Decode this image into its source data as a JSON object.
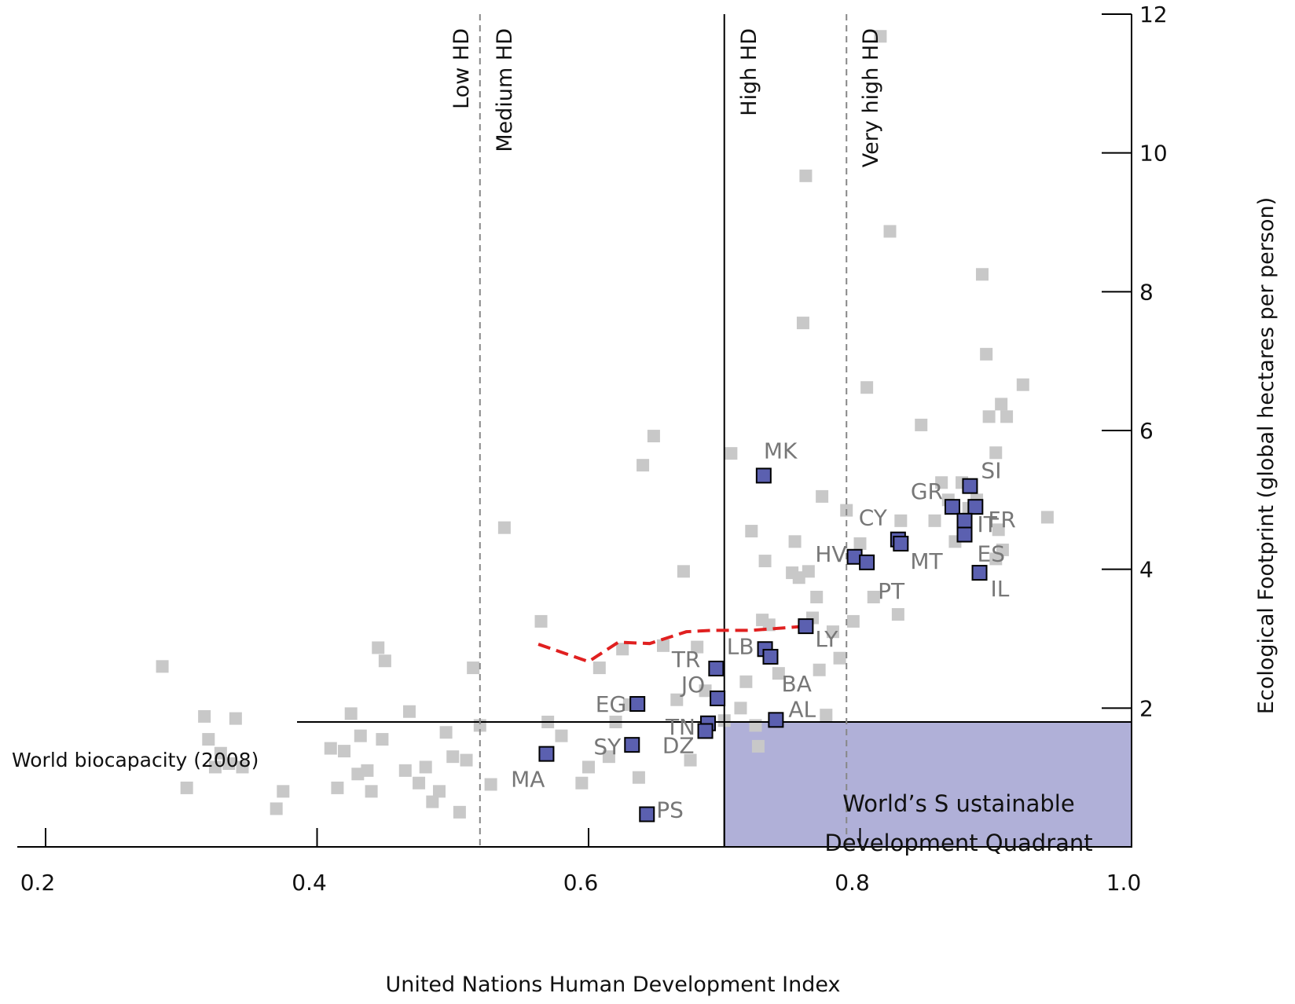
{
  "chart_data": {
    "type": "scatter",
    "title": "",
    "xlabel": "United Nations Human Development Index",
    "ylabel": "Ecological Footprint (global hectares per person)",
    "xlim": [
      0.2,
      1.0
    ],
    "ylim": [
      0,
      12
    ],
    "x_ticks": [
      "0.2",
      "0.4",
      "0.6",
      "0.8",
      "1.0"
    ],
    "y_ticks": [
      "2",
      "4",
      "6",
      "8",
      "10",
      "12"
    ],
    "x_tick_values": [
      0.2,
      0.4,
      0.6,
      0.8,
      1.0
    ],
    "y_tick_values": [
      2,
      4,
      6,
      8,
      10,
      12
    ],
    "grid": false,
    "hd_thresholds": [
      {
        "label": "Low HD",
        "x": 0.52,
        "style": "dashed"
      },
      {
        "label": "Medium HD",
        "x": 0.52,
        "style": "dashed"
      },
      {
        "label": "High HD",
        "x": 0.7,
        "style": "solid"
      },
      {
        "label": "Very high HD",
        "x": 0.79,
        "style": "dashed"
      }
    ],
    "biocapacity": {
      "label": "World biocapacity (2008)",
      "y": 1.8
    },
    "quadrant": {
      "label_line1": "World’s  S ustainable",
      "label_line2": "Development Quadrant",
      "x_range": [
        0.7,
        1.0
      ],
      "y_range": [
        0,
        1.8
      ],
      "color": "#b0b0d8"
    },
    "colors": {
      "highlight": "#5b60b0",
      "background_points": "#c8c8c8",
      "trend": "#e02020",
      "labels": "#777777"
    },
    "trend_line": {
      "x": [
        0.563,
        0.6,
        0.622,
        0.645,
        0.672,
        0.69,
        0.72,
        0.76
      ],
      "y": [
        2.92,
        2.67,
        2.95,
        2.93,
        3.1,
        3.12,
        3.12,
        3.18
      ]
    },
    "highlighted_series": [
      {
        "label": "MK",
        "x": 0.729,
        "y": 5.35
      },
      {
        "label": "SI",
        "x": 0.881,
        "y": 5.2
      },
      {
        "label": "GR",
        "x": 0.868,
        "y": 4.9
      },
      {
        "label": "FR",
        "x": 0.885,
        "y": 4.9
      },
      {
        "label": "IT",
        "x": 0.877,
        "y": 4.7
      },
      {
        "label": "CY",
        "x": 0.828,
        "y": 4.43
      },
      {
        "label": "MT",
        "x": 0.83,
        "y": 4.37
      },
      {
        "label": "ES",
        "x": 0.877,
        "y": 4.5
      },
      {
        "label": "HV",
        "x": 0.796,
        "y": 4.18
      },
      {
        "label": "PT",
        "x": 0.805,
        "y": 4.1
      },
      {
        "label": "IL",
        "x": 0.888,
        "y": 3.95
      },
      {
        "label": "LY",
        "x": 0.76,
        "y": 3.18
      },
      {
        "label": "LB",
        "x": 0.73,
        "y": 2.85
      },
      {
        "label": "BA",
        "x": 0.734,
        "y": 2.74
      },
      {
        "label": "TR",
        "x": 0.694,
        "y": 2.57
      },
      {
        "label": "JO",
        "x": 0.695,
        "y": 2.14
      },
      {
        "label": "EG",
        "x": 0.636,
        "y": 2.06
      },
      {
        "label": "TN",
        "x": 0.688,
        "y": 1.78
      },
      {
        "label": "AL",
        "x": 0.738,
        "y": 1.83
      },
      {
        "label": "DZ",
        "x": 0.686,
        "y": 1.67
      },
      {
        "label": "SY",
        "x": 0.632,
        "y": 1.47
      },
      {
        "label": "MA",
        "x": 0.569,
        "y": 1.34
      },
      {
        "label": "PS",
        "x": 0.643,
        "y": 0.47
      }
    ],
    "background_points": [
      {
        "x": 0.286,
        "y": 2.6
      },
      {
        "x": 0.304,
        "y": 0.85
      },
      {
        "x": 0.317,
        "y": 1.88
      },
      {
        "x": 0.32,
        "y": 1.55
      },
      {
        "x": 0.325,
        "y": 1.15
      },
      {
        "x": 0.329,
        "y": 1.35
      },
      {
        "x": 0.335,
        "y": 1.2
      },
      {
        "x": 0.34,
        "y": 1.85
      },
      {
        "x": 0.345,
        "y": 1.15
      },
      {
        "x": 0.37,
        "y": 0.55
      },
      {
        "x": 0.375,
        "y": 0.8
      },
      {
        "x": 0.41,
        "y": 1.42
      },
      {
        "x": 0.415,
        "y": 0.85
      },
      {
        "x": 0.42,
        "y": 1.38
      },
      {
        "x": 0.425,
        "y": 1.92
      },
      {
        "x": 0.43,
        "y": 1.05
      },
      {
        "x": 0.432,
        "y": 1.6
      },
      {
        "x": 0.437,
        "y": 1.1
      },
      {
        "x": 0.44,
        "y": 0.8
      },
      {
        "x": 0.445,
        "y": 2.87
      },
      {
        "x": 0.448,
        "y": 1.55
      },
      {
        "x": 0.45,
        "y": 2.68
      },
      {
        "x": 0.465,
        "y": 1.1
      },
      {
        "x": 0.468,
        "y": 1.95
      },
      {
        "x": 0.475,
        "y": 0.92
      },
      {
        "x": 0.48,
        "y": 1.15
      },
      {
        "x": 0.485,
        "y": 0.65
      },
      {
        "x": 0.49,
        "y": 0.8
      },
      {
        "x": 0.495,
        "y": 1.65
      },
      {
        "x": 0.5,
        "y": 1.3
      },
      {
        "x": 0.505,
        "y": 0.5
      },
      {
        "x": 0.51,
        "y": 1.25
      },
      {
        "x": 0.515,
        "y": 2.58
      },
      {
        "x": 0.52,
        "y": 1.75
      },
      {
        "x": 0.528,
        "y": 0.9
      },
      {
        "x": 0.538,
        "y": 4.6
      },
      {
        "x": 0.565,
        "y": 3.25
      },
      {
        "x": 0.57,
        "y": 1.8
      },
      {
        "x": 0.58,
        "y": 1.6
      },
      {
        "x": 0.595,
        "y": 0.92
      },
      {
        "x": 0.6,
        "y": 1.15
      },
      {
        "x": 0.608,
        "y": 2.58
      },
      {
        "x": 0.615,
        "y": 1.3
      },
      {
        "x": 0.62,
        "y": 1.8
      },
      {
        "x": 0.625,
        "y": 2.85
      },
      {
        "x": 0.63,
        "y": 2.05
      },
      {
        "x": 0.637,
        "y": 1.0
      },
      {
        "x": 0.64,
        "y": 5.5
      },
      {
        "x": 0.648,
        "y": 5.92
      },
      {
        "x": 0.655,
        "y": 2.9
      },
      {
        "x": 0.665,
        "y": 2.12
      },
      {
        "x": 0.67,
        "y": 3.97
      },
      {
        "x": 0.675,
        "y": 1.25
      },
      {
        "x": 0.68,
        "y": 2.88
      },
      {
        "x": 0.686,
        "y": 2.25
      },
      {
        "x": 0.7,
        "y": 1.82
      },
      {
        "x": 0.705,
        "y": 5.67
      },
      {
        "x": 0.712,
        "y": 2.0
      },
      {
        "x": 0.716,
        "y": 2.38
      },
      {
        "x": 0.72,
        "y": 4.55
      },
      {
        "x": 0.723,
        "y": 1.75
      },
      {
        "x": 0.725,
        "y": 1.45
      },
      {
        "x": 0.728,
        "y": 3.27
      },
      {
        "x": 0.73,
        "y": 4.12
      },
      {
        "x": 0.733,
        "y": 3.2
      },
      {
        "x": 0.74,
        "y": 2.5
      },
      {
        "x": 0.75,
        "y": 3.95
      },
      {
        "x": 0.752,
        "y": 4.4
      },
      {
        "x": 0.755,
        "y": 3.88
      },
      {
        "x": 0.758,
        "y": 7.55
      },
      {
        "x": 0.76,
        "y": 9.67
      },
      {
        "x": 0.762,
        "y": 3.97
      },
      {
        "x": 0.765,
        "y": 3.3
      },
      {
        "x": 0.768,
        "y": 3.6
      },
      {
        "x": 0.77,
        "y": 2.55
      },
      {
        "x": 0.772,
        "y": 5.05
      },
      {
        "x": 0.775,
        "y": 1.9
      },
      {
        "x": 0.78,
        "y": 3.1
      },
      {
        "x": 0.785,
        "y": 2.72
      },
      {
        "x": 0.79,
        "y": 4.85
      },
      {
        "x": 0.795,
        "y": 3.25
      },
      {
        "x": 0.8,
        "y": 4.37
      },
      {
        "x": 0.805,
        "y": 6.62
      },
      {
        "x": 0.81,
        "y": 3.6
      },
      {
        "x": 0.815,
        "y": 11.68
      },
      {
        "x": 0.822,
        "y": 8.87
      },
      {
        "x": 0.828,
        "y": 3.35
      },
      {
        "x": 0.83,
        "y": 4.7
      },
      {
        "x": 0.845,
        "y": 6.08
      },
      {
        "x": 0.855,
        "y": 4.7
      },
      {
        "x": 0.86,
        "y": 5.25
      },
      {
        "x": 0.865,
        "y": 5.0
      },
      {
        "x": 0.87,
        "y": 4.4
      },
      {
        "x": 0.875,
        "y": 5.25
      },
      {
        "x": 0.88,
        "y": 4.88
      },
      {
        "x": 0.886,
        "y": 5.0
      },
      {
        "x": 0.89,
        "y": 8.25
      },
      {
        "x": 0.893,
        "y": 7.1
      },
      {
        "x": 0.895,
        "y": 6.2
      },
      {
        "x": 0.9,
        "y": 5.68
      },
      {
        "x": 0.902,
        "y": 4.57
      },
      {
        "x": 0.904,
        "y": 6.38
      },
      {
        "x": 0.905,
        "y": 4.28
      },
      {
        "x": 0.908,
        "y": 6.2
      },
      {
        "x": 0.92,
        "y": 6.66
      },
      {
        "x": 0.938,
        "y": 4.75
      },
      {
        "x": 0.9,
        "y": 4.15
      }
    ]
  }
}
